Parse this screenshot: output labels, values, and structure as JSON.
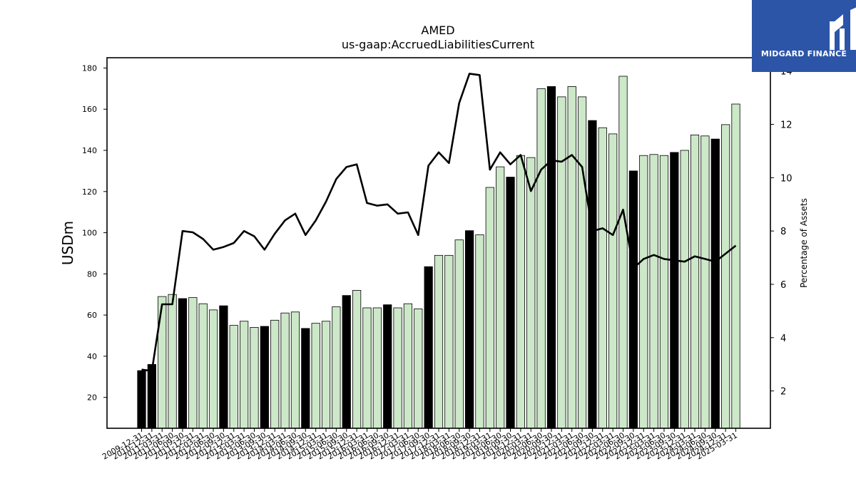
{
  "brand": {
    "name": "MIDGARD FINANCE",
    "logo_icon": "midgard-m-logo-icon",
    "background": "#2c55a8"
  },
  "chart_data": {
    "type": "bar",
    "title": "AMED",
    "subtitle": "us-gaap:AccruedLiabilitiesCurrent",
    "ylabel": "USDm",
    "y2label": "Percentage of Assets",
    "ylim": [
      5,
      185
    ],
    "yticks": [
      20,
      40,
      60,
      80,
      100,
      120,
      140,
      160,
      180
    ],
    "y2lim": [
      0.6,
      14.5
    ],
    "y2ticks": [
      2,
      4,
      6,
      8,
      10,
      12,
      14
    ],
    "colors": {
      "annual": "#000000",
      "quarterly": "#cce8c8",
      "line": "#000000"
    },
    "categories": [
      "2009-12-31",
      "2010-12-31",
      "2011-03-31",
      "2011-06-30",
      "2011-09-30",
      "2011-12-31",
      "2012-03-31",
      "2012-06-30",
      "2012-09-30",
      "2012-12-31",
      "2013-03-31",
      "2013-06-30",
      "2013-09-30",
      "2013-12-31",
      "2014-03-31",
      "2014-06-30",
      "2014-09-30",
      "2014-12-31",
      "2015-03-31",
      "2015-06-30",
      "2015-09-30",
      "2015-12-31",
      "2016-03-31",
      "2016-06-30",
      "2016-09-30",
      "2016-12-31",
      "2017-03-31",
      "2017-06-30",
      "2017-09-30",
      "2017-12-31",
      "2018-03-31",
      "2018-06-30",
      "2018-09-30",
      "2018-12-31",
      "2019-03-31",
      "2019-06-30",
      "2019-09-30",
      "2019-12-31",
      "2020-03-31",
      "2020-06-30",
      "2020-09-30",
      "2020-12-31",
      "2021-03-31",
      "2021-06-30",
      "2021-09-30",
      "2021-12-31",
      "2022-03-31",
      "2022-06-30",
      "2022-09-30",
      "2022-12-31",
      "2023-03-31",
      "2023-06-30",
      "2023-09-30",
      "2023-12-31",
      "2024-03-31",
      "2024-06-30",
      "2024-09-30",
      "2024-12-31",
      "2025-03-31"
    ],
    "annual_flags": [
      1,
      1,
      0,
      0,
      1,
      0,
      0,
      0,
      1,
      0,
      0,
      0,
      1,
      0,
      0,
      0,
      1,
      0,
      0,
      0,
      1,
      0,
      0,
      0,
      1,
      0,
      0,
      0,
      1,
      0,
      0,
      0,
      1,
      0,
      0,
      0,
      1,
      0,
      0,
      0,
      1,
      0,
      0,
      0,
      1,
      0,
      0,
      0,
      1,
      0,
      0,
      0,
      1,
      0,
      0,
      0,
      1,
      0,
      0
    ],
    "series": [
      {
        "type": "bar",
        "values": [
          33,
          36,
          69,
          70,
          68,
          68.5,
          65.5,
          62.5,
          64.5,
          55,
          57,
          54,
          54.5,
          57.5,
          61,
          61.5,
          53.5,
          56,
          57,
          64,
          69.5,
          72,
          63.5,
          63.5,
          65,
          63.5,
          65.5,
          63,
          83.5,
          89,
          89,
          96.5,
          101,
          99,
          122,
          132,
          127,
          137.5,
          136.5,
          170,
          171,
          166,
          171,
          166,
          154.5,
          151,
          148,
          176,
          130,
          137.5,
          138,
          137.5,
          139,
          140,
          147.5,
          147,
          145.5,
          152.5,
          162.5
        ]
      },
      {
        "type": "line",
        "axis": "right",
        "values": [
          2.8,
          2.75,
          5.25,
          5.25,
          8.0,
          7.95,
          7.7,
          7.3,
          7.4,
          7.55,
          8.0,
          7.8,
          7.3,
          7.9,
          8.4,
          8.65,
          7.85,
          8.4,
          9.1,
          9.95,
          10.4,
          10.5,
          9.05,
          8.95,
          9.0,
          8.65,
          8.7,
          7.85,
          10.45,
          10.95,
          10.55,
          12.8,
          13.9,
          13.85,
          10.3,
          10.95,
          10.5,
          10.85,
          9.5,
          10.3,
          10.65,
          10.6,
          10.85,
          10.4,
          8.0,
          8.1,
          7.85,
          8.8,
          6.6,
          6.95,
          7.1,
          6.95,
          6.9,
          6.85,
          7.05,
          6.95,
          6.85,
          7.15,
          7.45
        ]
      }
    ]
  }
}
